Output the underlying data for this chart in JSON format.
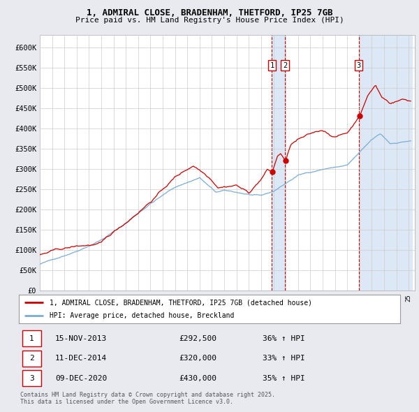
{
  "title_line1": "1, ADMIRAL CLOSE, BRADENHAM, THETFORD, IP25 7GB",
  "title_line2": "Price paid vs. HM Land Registry's House Price Index (HPI)",
  "legend_red": "1, ADMIRAL CLOSE, BRADENHAM, THETFORD, IP25 7GB (detached house)",
  "legend_blue": "HPI: Average price, detached house, Breckland",
  "sales": [
    {
      "num": 1,
      "date": "15-NOV-2013",
      "price": 292500,
      "pct": "36%",
      "dir": "↑"
    },
    {
      "num": 2,
      "date": "11-DEC-2014",
      "price": 320000,
      "pct": "33%",
      "dir": "↑"
    },
    {
      "num": 3,
      "date": "09-DEC-2020",
      "price": 430000,
      "pct": "35%",
      "dir": "↑"
    }
  ],
  "footnote1": "Contains HM Land Registry data © Crown copyright and database right 2025.",
  "footnote2": "This data is licensed under the Open Government Licence v3.0.",
  "ylim": [
    0,
    630000
  ],
  "yticks": [
    0,
    50000,
    100000,
    150000,
    200000,
    250000,
    300000,
    350000,
    400000,
    450000,
    500000,
    550000,
    600000
  ],
  "bg_color": "#e8eaf0",
  "plot_bg": "#ffffff",
  "red_color": "#cc0000",
  "blue_color": "#7aadd4",
  "sale1_x": 2013.88,
  "sale2_x": 2014.94,
  "sale3_x": 2020.94,
  "span_color": "#dce8f5",
  "grid_color": "#cccccc",
  "vline_color": "#cc0000"
}
